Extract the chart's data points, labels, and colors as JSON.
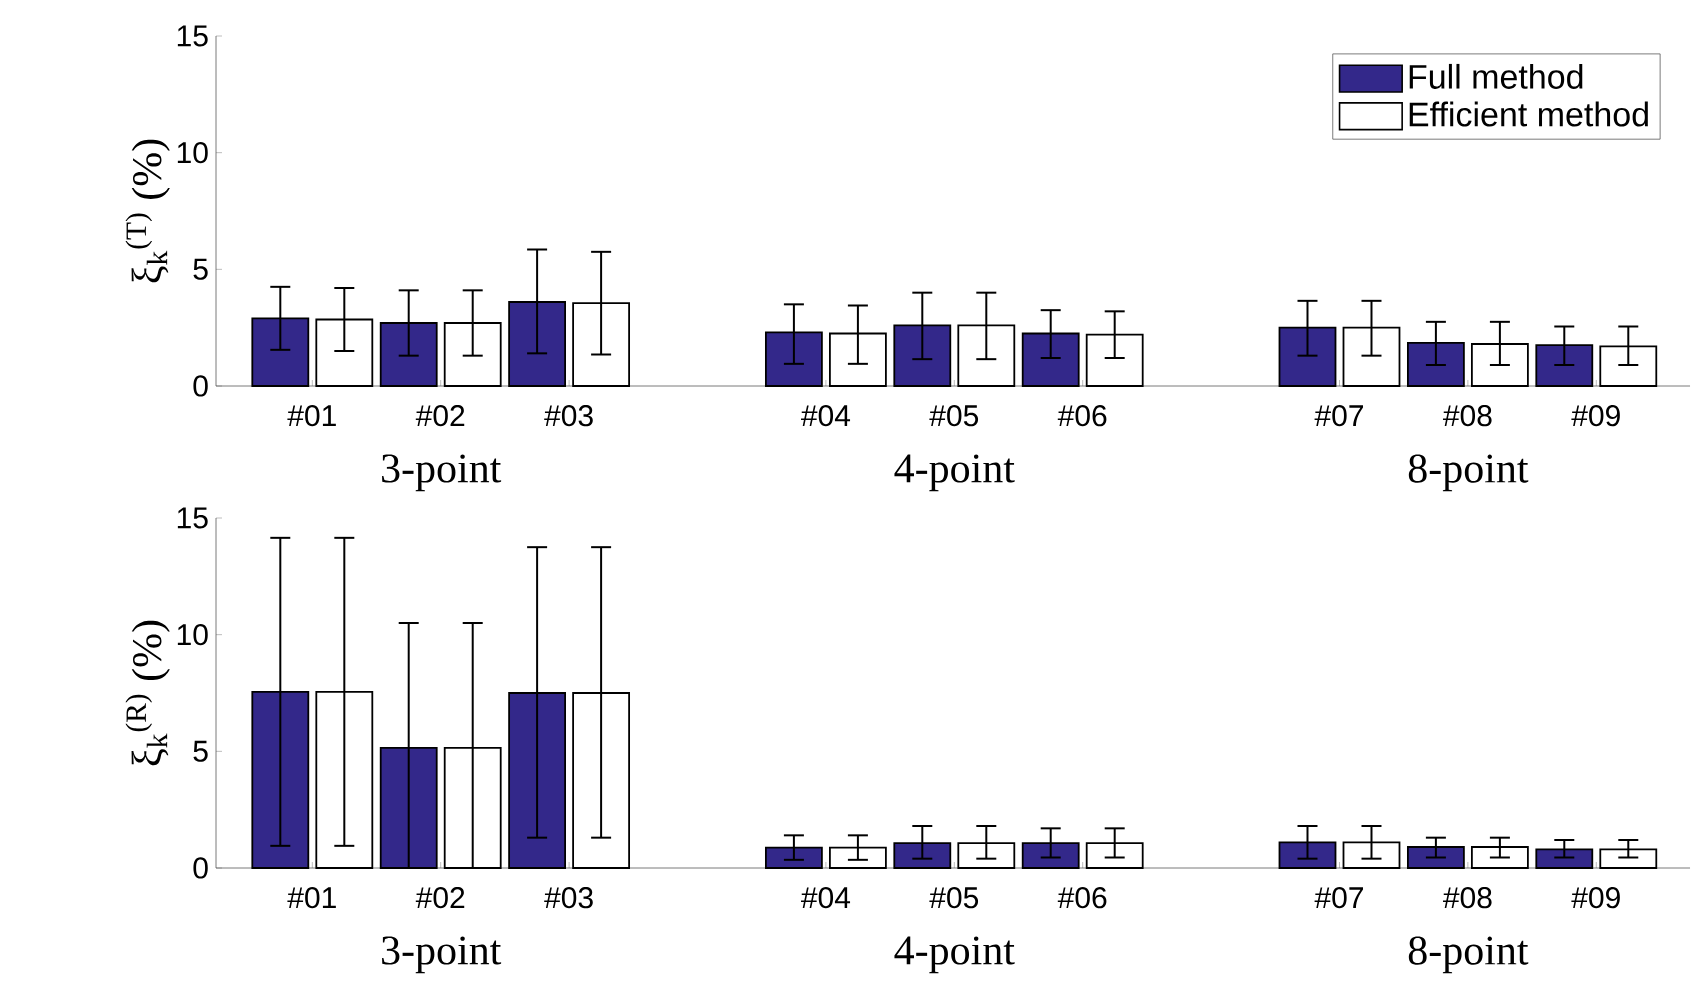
{
  "chart_data": [
    {
      "type": "bar",
      "ylabel": "ξ$_{k}$$^{(T)}$ (%)",
      "categories": [
        "#01",
        "#02",
        "#03",
        null,
        "#04",
        "#05",
        "#06",
        null,
        "#07",
        "#08",
        "#09"
      ],
      "series": [
        {
          "name": "Full method",
          "color": "#33288a",
          "values": [
            2.9,
            2.7,
            3.6,
            null,
            2.3,
            2.6,
            2.25,
            null,
            2.5,
            1.85,
            1.75
          ],
          "errors": [
            [
              1.55,
              4.25
            ],
            [
              1.3,
              4.1
            ],
            [
              1.4,
              5.85
            ],
            null,
            [
              0.95,
              3.5
            ],
            [
              1.15,
              4.0
            ],
            [
              1.2,
              3.25
            ],
            null,
            [
              1.3,
              3.65
            ],
            [
              0.9,
              2.75
            ],
            [
              0.9,
              2.55
            ]
          ]
        },
        {
          "name": "Efficient method",
          "color": "#ffffff",
          "values": [
            2.85,
            2.7,
            3.55,
            null,
            2.25,
            2.6,
            2.2,
            null,
            2.5,
            1.8,
            1.7
          ],
          "errors": [
            [
              1.5,
              4.2
            ],
            [
              1.3,
              4.1
            ],
            [
              1.35,
              5.75
            ],
            null,
            [
              0.95,
              3.45
            ],
            [
              1.15,
              4.0
            ],
            [
              1.2,
              3.2
            ],
            null,
            [
              1.3,
              3.65
            ],
            [
              0.9,
              2.75
            ],
            [
              0.9,
              2.55
            ]
          ]
        }
      ],
      "ylim": [
        0,
        15
      ],
      "yticks": [
        0,
        5,
        10,
        15
      ],
      "legend": "top right",
      "annotations": [
        "3-point",
        "4-point",
        "8-point"
      ]
    },
    {
      "type": "bar",
      "ylabel": "ξ$_{k}$$^{(R)}$ (%)",
      "categories": [
        "#01",
        "#02",
        "#03",
        null,
        "#04",
        "#05",
        "#06",
        null,
        "#07",
        "#08",
        "#09"
      ],
      "series": [
        {
          "color": "#33288a",
          "values": [
            7.55,
            5.15,
            7.5,
            null,
            0.87,
            1.07,
            1.07,
            null,
            1.1,
            0.9,
            0.8
          ],
          "errors": [
            [
              0.95,
              14.15
            ],
            [
              0.0,
              10.5
            ],
            [
              1.3,
              13.75
            ],
            null,
            [
              0.35,
              1.4
            ],
            [
              0.4,
              1.8
            ],
            [
              0.45,
              1.7
            ],
            null,
            [
              0.4,
              1.8
            ],
            [
              0.45,
              1.3
            ],
            [
              0.45,
              1.2
            ]
          ]
        },
        {
          "color": "#ffffff",
          "values": [
            7.55,
            5.15,
            7.5,
            null,
            0.87,
            1.07,
            1.07,
            null,
            1.1,
            0.9,
            0.8
          ],
          "errors": [
            [
              0.95,
              14.15
            ],
            [
              0.0,
              10.5
            ],
            [
              1.3,
              13.75
            ],
            null,
            [
              0.35,
              1.4
            ],
            [
              0.4,
              1.8
            ],
            [
              0.45,
              1.7
            ],
            null,
            [
              0.4,
              1.8
            ],
            [
              0.45,
              1.3
            ],
            [
              0.45,
              1.2
            ]
          ]
        }
      ],
      "ylim": [
        0,
        15
      ],
      "yticks": [
        0,
        5,
        10,
        15
      ],
      "annotations": [
        "3-point",
        "4-point",
        "8-point"
      ]
    }
  ]
}
